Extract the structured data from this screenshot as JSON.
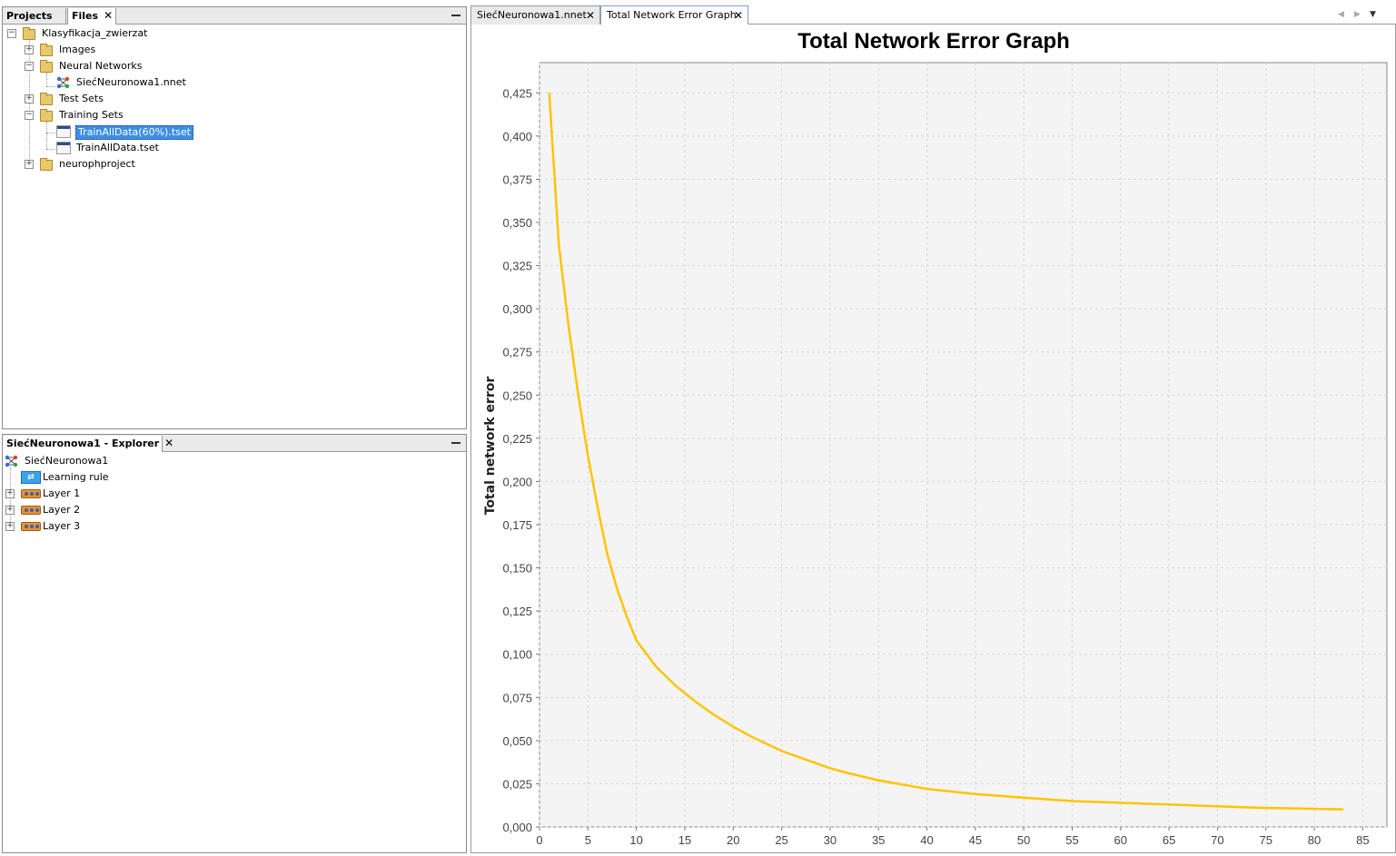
{
  "files_panel": {
    "tabs": [
      {
        "label": "Projects",
        "active": false
      },
      {
        "label": "Files",
        "active": true,
        "close": "✕"
      }
    ],
    "tree": [
      {
        "label": "Klasyfikacja_zwierzat",
        "icon": "folder-icon",
        "level": 0,
        "expander": "−"
      },
      {
        "label": "Images",
        "icon": "folder-icon",
        "level": 1,
        "expander": "+"
      },
      {
        "label": "Neural Networks",
        "icon": "folder-icon",
        "level": 1,
        "expander": "−"
      },
      {
        "label": "SiećNeuronowa1.nnet",
        "icon": "network-icon",
        "level": 2
      },
      {
        "label": "Test Sets",
        "icon": "folder-icon",
        "level": 1,
        "expander": "+"
      },
      {
        "label": "Training Sets",
        "icon": "folder-icon",
        "level": 1,
        "expander": "−"
      },
      {
        "label": "TrainAllData(60%).tset",
        "icon": "training-set-icon",
        "level": 2,
        "selected": true
      },
      {
        "label": "TrainAllData.tset",
        "icon": "training-set-icon",
        "level": 2
      },
      {
        "label": "neurophproject",
        "icon": "folder-icon",
        "level": 1,
        "expander": "+"
      }
    ]
  },
  "explorer_panel": {
    "tab": {
      "label": "SiećNeuronowa1 - Explorer",
      "close": "✕"
    },
    "root": "SiećNeuronowa1",
    "items": [
      {
        "label": "Learning rule",
        "icon": "learning-rule-icon"
      },
      {
        "label": "Layer 1",
        "icon": "layer-icon",
        "expander": "+"
      },
      {
        "label": "Layer 2",
        "icon": "layer-icon",
        "expander": "+"
      },
      {
        "label": "Layer 3",
        "icon": "layer-icon",
        "expander": "+"
      }
    ]
  },
  "editor_tabs": [
    {
      "label": "SiećNeuronowa1.nnet",
      "active": false,
      "close": "✕"
    },
    {
      "label": "Total Network Error Graph",
      "active": true,
      "close": "✕"
    }
  ],
  "colors": {
    "series": "#ffc400",
    "plot_bg": "#f4f4f4",
    "grid": "#d8d8d8",
    "selection": "#3d8ee6"
  },
  "chart_data": {
    "type": "line",
    "title": "Total Network Error Graph",
    "xlabel": "",
    "ylabel": "Total network error",
    "xlim": [
      0,
      87.5
    ],
    "ylim": [
      0,
      0.4425
    ],
    "xticks": [
      0,
      5,
      10,
      15,
      20,
      25,
      30,
      35,
      40,
      45,
      50,
      55,
      60,
      65,
      70,
      75,
      80,
      85
    ],
    "yticks": [
      0,
      0.025,
      0.05,
      0.075,
      0.1,
      0.125,
      0.15,
      0.175,
      0.2,
      0.225,
      0.25,
      0.275,
      0.3,
      0.325,
      0.35,
      0.375,
      0.4,
      0.425
    ],
    "ytick_labels": [
      "0,000",
      "0,025",
      "0,050",
      "0,075",
      "0,100",
      "0,125",
      "0,150",
      "0,175",
      "0,200",
      "0,225",
      "0,250",
      "0,275",
      "0,300",
      "0,325",
      "0,350",
      "0,375",
      "0,400",
      "0,425"
    ],
    "grid": true,
    "series": [
      {
        "x": [
          1,
          2,
          3,
          4,
          5,
          6,
          7,
          8,
          9,
          10,
          12,
          14,
          16,
          18,
          20,
          22,
          25,
          28,
          30,
          32,
          35,
          38,
          40,
          45,
          50,
          55,
          60,
          65,
          70,
          75,
          80,
          83
        ],
        "values": [
          0.425,
          0.337,
          0.29,
          0.25,
          0.215,
          0.185,
          0.158,
          0.138,
          0.122,
          0.108,
          0.093,
          0.082,
          0.073,
          0.065,
          0.058,
          0.052,
          0.044,
          0.038,
          0.034,
          0.031,
          0.027,
          0.024,
          0.022,
          0.019,
          0.017,
          0.015,
          0.014,
          0.013,
          0.012,
          0.011,
          0.0105,
          0.0102
        ]
      }
    ]
  }
}
